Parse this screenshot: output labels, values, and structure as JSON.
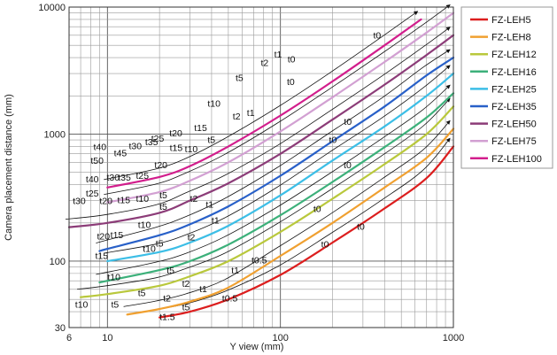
{
  "chart_data": {
    "type": "line",
    "title": "",
    "xlabel": "Y view (mm)",
    "ylabel": "Camera placement distance (mm)",
    "x_scale": "log",
    "y_scale": "log",
    "xlim": [
      6,
      1000
    ],
    "ylim": [
      30,
      10000
    ],
    "x_tick_labels": [
      "6",
      "10",
      "100",
      "1000"
    ],
    "x_ticks": [
      6,
      10,
      100,
      1000
    ],
    "y_tick_labels": [
      "30",
      "100",
      "1000",
      "10000"
    ],
    "y_ticks": [
      30,
      100,
      1000,
      10000
    ],
    "grid": true,
    "legend_position": "right",
    "series": [
      {
        "name": "FZ-LEH5",
        "color": "#dc1e1e",
        "x": [
          20,
          30,
          50,
          100,
          200,
          400,
          700,
          1000
        ],
        "y": [
          36,
          40,
          50,
          78,
          140,
          260,
          450,
          800
        ]
      },
      {
        "name": "FZ-LEH8",
        "color": "#f0a030",
        "x": [
          13,
          20,
          30,
          50,
          100,
          200,
          400,
          700,
          1000
        ],
        "y": [
          38,
          42,
          48,
          62,
          110,
          200,
          380,
          650,
          1100
        ]
      },
      {
        "name": "FZ-LEH12",
        "color": "#b9c83c",
        "x": [
          7,
          10,
          20,
          30,
          50,
          100,
          200,
          400,
          700,
          1000
        ],
        "y": [
          52,
          55,
          64,
          76,
          100,
          170,
          310,
          580,
          1000,
          1650
        ]
      },
      {
        "name": "FZ-LEH16",
        "color": "#3cb07a",
        "x": [
          9,
          10,
          20,
          30,
          50,
          100,
          200,
          400,
          700,
          1000
        ],
        "y": [
          68,
          70,
          85,
          100,
          135,
          230,
          420,
          790,
          1350,
          2100
        ]
      },
      {
        "name": "FZ-LEH25",
        "color": "#3cbee6",
        "x": [
          10,
          20,
          30,
          50,
          100,
          200,
          400,
          700,
          1000
        ],
        "y": [
          100,
          118,
          140,
          190,
          330,
          620,
          1150,
          2000,
          3000
        ]
      },
      {
        "name": "FZ-LEH35",
        "color": "#2860c8",
        "x": [
          9,
          10,
          20,
          30,
          50,
          100,
          200,
          400,
          700,
          1000
        ],
        "y": [
          120,
          125,
          160,
          195,
          270,
          470,
          880,
          1650,
          2900,
          4000
        ]
      },
      {
        "name": "FZ-LEH50",
        "color": "#8c3c78",
        "x": [
          6,
          10,
          20,
          30,
          50,
          100,
          200,
          400,
          700,
          1000
        ],
        "y": [
          185,
          200,
          240,
          300,
          410,
          700,
          1300,
          2450,
          4200,
          6000
        ]
      },
      {
        "name": "FZ-LEH75",
        "color": "#d2a0d2",
        "x": [
          10,
          20,
          30,
          50,
          100,
          200,
          400,
          700,
          1000
        ],
        "y": [
          290,
          350,
          430,
          600,
          1050,
          1950,
          3700,
          6300,
          9000
        ]
      },
      {
        "name": "FZ-LEH100",
        "color": "#d21e8c",
        "x": [
          10,
          20,
          30,
          50,
          100,
          200,
          400,
          650
        ],
        "y": [
          380,
          460,
          560,
          800,
          1400,
          2600,
          5000,
          8000
        ]
      }
    ],
    "annotations": [
      {
        "text": "t10",
        "x": 6.5,
        "y": 43
      },
      {
        "text": "t5",
        "x": 10.5,
        "y": 43
      },
      {
        "text": "t1.5",
        "x": 20,
        "y": 34.5
      },
      {
        "text": "t5",
        "x": 27,
        "y": 41
      },
      {
        "text": "t5",
        "x": 15,
        "y": 53
      },
      {
        "text": "t2",
        "x": 21,
        "y": 48
      },
      {
        "text": "t10",
        "x": 10,
        "y": 71
      },
      {
        "text": "t2",
        "x": 27,
        "y": 63
      },
      {
        "text": "t1",
        "x": 34,
        "y": 57
      },
      {
        "text": "t0.5",
        "x": 46,
        "y": 48
      },
      {
        "text": "t15",
        "x": 8.5,
        "y": 104
      },
      {
        "text": "t5",
        "x": 22,
        "y": 80
      },
      {
        "text": "t1",
        "x": 52,
        "y": 80
      },
      {
        "text": "t0.5",
        "x": 68,
        "y": 96
      },
      {
        "text": "t10",
        "x": 16,
        "y": 118
      },
      {
        "text": "t20",
        "x": 8.7,
        "y": 148
      },
      {
        "text": "t15",
        "x": 10.4,
        "y": 152
      },
      {
        "text": "t5",
        "x": 19,
        "y": 130
      },
      {
        "text": "t2",
        "x": 29,
        "y": 146
      },
      {
        "text": "t10",
        "x": 15,
        "y": 182
      },
      {
        "text": "t1",
        "x": 40,
        "y": 197
      },
      {
        "text": "t0",
        "x": 172,
        "y": 128
      },
      {
        "text": "t0",
        "x": 155,
        "y": 244
      },
      {
        "text": "t30",
        "x": 6.3,
        "y": 282
      },
      {
        "text": "t25",
        "x": 7.5,
        "y": 322
      },
      {
        "text": "t20",
        "x": 9,
        "y": 282
      },
      {
        "text": "t15",
        "x": 11.4,
        "y": 286
      },
      {
        "text": "t10",
        "x": 14.6,
        "y": 292
      },
      {
        "text": "t5",
        "x": 20,
        "y": 254
      },
      {
        "text": "t5",
        "x": 20,
        "y": 312
      },
      {
        "text": "t2",
        "x": 30,
        "y": 292
      },
      {
        "text": "t1",
        "x": 37,
        "y": 264
      },
      {
        "text": "t40",
        "x": 7.5,
        "y": 418
      },
      {
        "text": "t30",
        "x": 9.9,
        "y": 430
      },
      {
        "text": "t35",
        "x": 11.5,
        "y": 430
      },
      {
        "text": "t25",
        "x": 14.6,
        "y": 445
      },
      {
        "text": "t20",
        "x": 18.7,
        "y": 540
      },
      {
        "text": "t50",
        "x": 8,
        "y": 583
      },
      {
        "text": "t45",
        "x": 10.9,
        "y": 667
      },
      {
        "text": "t40",
        "x": 8.3,
        "y": 746
      },
      {
        "text": "t35",
        "x": 16.5,
        "y": 815
      },
      {
        "text": "t30",
        "x": 13.3,
        "y": 763
      },
      {
        "text": "t25",
        "x": 17.9,
        "y": 870
      },
      {
        "text": "t20",
        "x": 22.8,
        "y": 957
      },
      {
        "text": "t15",
        "x": 22.9,
        "y": 740
      },
      {
        "text": "t10",
        "x": 28,
        "y": 717
      },
      {
        "text": "t5",
        "x": 37.9,
        "y": 850
      },
      {
        "text": "t15",
        "x": 31.7,
        "y": 1060
      },
      {
        "text": "t10",
        "x": 37.9,
        "y": 1640
      },
      {
        "text": "t5",
        "x": 55,
        "y": 2610
      },
      {
        "text": "t2",
        "x": 53,
        "y": 1300
      },
      {
        "text": "t1",
        "x": 64,
        "y": 1390
      },
      {
        "text": "t2",
        "x": 77,
        "y": 3450
      },
      {
        "text": "t1",
        "x": 92,
        "y": 4000
      },
      {
        "text": "t0",
        "x": 110,
        "y": 3670
      },
      {
        "text": "t0",
        "x": 109,
        "y": 2430
      },
      {
        "text": "t0",
        "x": 233,
        "y": 1180
      },
      {
        "text": "t0",
        "x": 191,
        "y": 850
      },
      {
        "text": "t0",
        "x": 232,
        "y": 540
      },
      {
        "text": "t0",
        "x": 277,
        "y": 177
      },
      {
        "text": "t0",
        "x": 344,
        "y": 5650
      }
    ]
  },
  "legend": {
    "items": [
      "FZ-LEH5",
      "FZ-LEH8",
      "FZ-LEH12",
      "FZ-LEH16",
      "FZ-LEH25",
      "FZ-LEH35",
      "FZ-LEH50",
      "FZ-LEH75",
      "FZ-LEH100"
    ]
  }
}
